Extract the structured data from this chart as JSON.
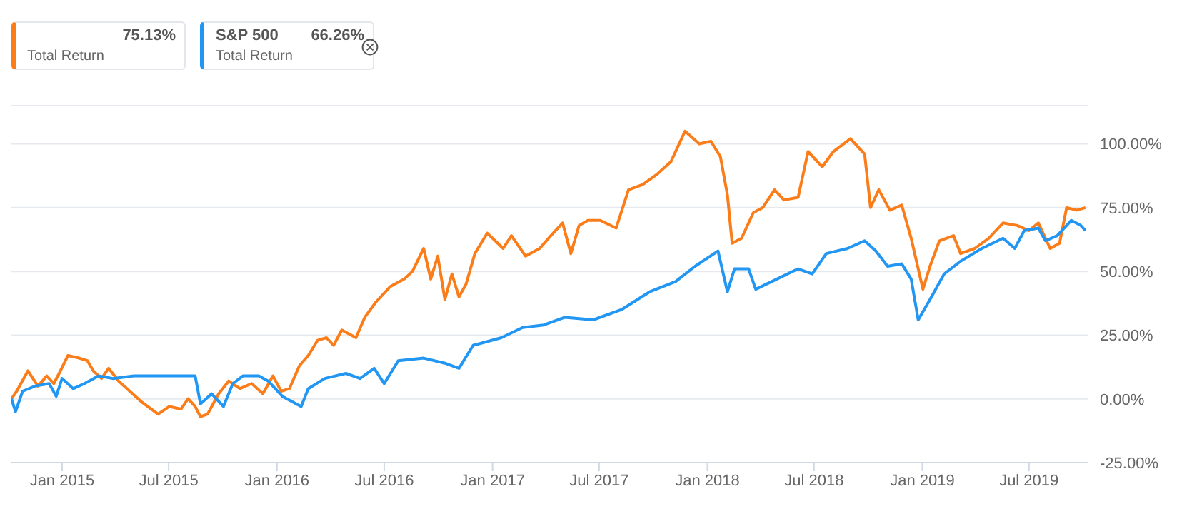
{
  "chart_data": {
    "type": "line",
    "legend": "top left",
    "grid": "y",
    "marker": "none",
    "line_style": "solid",
    "annotations": [
      "75.13%",
      "Total Return",
      "66.26%",
      "Total Return"
    ],
    "xlim": [
      "2014-10-07",
      "2019-10-10"
    ],
    "xticks": [
      {
        "value": "2015-01-01",
        "label": "Jan 2015"
      },
      {
        "value": "2015-07-01",
        "label": "Jul 2015"
      },
      {
        "value": "2016-01-01",
        "label": "Jan 2016"
      },
      {
        "value": "2016-07-01",
        "label": "Jul 2016"
      },
      {
        "value": "2017-01-01",
        "label": "Jan 2017"
      },
      {
        "value": "2017-07-01",
        "label": "Jul 2017"
      },
      {
        "value": "2018-01-01",
        "label": "Jan 2018"
      },
      {
        "value": "2018-07-01",
        "label": "Jul 2018"
      },
      {
        "value": "2019-01-01",
        "label": "Jan 2019"
      },
      {
        "value": "2019-07-01",
        "label": "Jul 2019"
      }
    ],
    "ylim": [
      -25,
      115
    ],
    "yticks": [
      {
        "value": -25,
        "label": "-25.00%"
      },
      {
        "value": 0,
        "label": "0.00%"
      },
      {
        "value": 25,
        "label": "25.00%"
      },
      {
        "value": 50,
        "label": "50.00%"
      },
      {
        "value": 75,
        "label": "75.00%"
      },
      {
        "value": 100,
        "label": "100.00%"
      }
    ],
    "series": [
      {
        "color": "#fb7d1a",
        "x": [
          "2014-10-07",
          "2014-10-16",
          "2014-11-04",
          "2014-11-21",
          "2014-12-06",
          "2014-12-18",
          "2014-12-27",
          "2015-01-11",
          "2015-01-30",
          "2015-02-13",
          "2015-02-23",
          "2015-03-09",
          "2015-03-21",
          "2015-04-07",
          "2015-04-26",
          "2015-05-15",
          "2015-06-13",
          "2015-07-02",
          "2015-07-22",
          "2015-08-03",
          "2015-08-15",
          "2015-08-24",
          "2015-09-05",
          "2015-09-24",
          "2015-10-11",
          "2015-10-30",
          "2015-11-19",
          "2015-12-08",
          "2015-12-25",
          "2016-01-08",
          "2016-01-22",
          "2016-02-08",
          "2016-02-23",
          "2016-03-10",
          "2016-03-25",
          "2016-04-06",
          "2016-04-20",
          "2016-05-14",
          "2016-05-29",
          "2016-06-17",
          "2016-07-11",
          "2016-08-04",
          "2016-08-18",
          "2016-09-06",
          "2016-09-18",
          "2016-09-30",
          "2016-10-12",
          "2016-10-24",
          "2016-11-05",
          "2016-11-17",
          "2016-12-02",
          "2016-12-23",
          "2017-01-19",
          "2017-02-02",
          "2017-02-26",
          "2017-03-22",
          "2017-04-10",
          "2017-04-30",
          "2017-05-14",
          "2017-05-28",
          "2017-06-12",
          "2017-07-03",
          "2017-07-30",
          "2017-08-20",
          "2017-09-13",
          "2017-10-07",
          "2017-10-31",
          "2017-11-24",
          "2017-12-18",
          "2018-01-07",
          "2018-01-23",
          "2018-02-04",
          "2018-02-12",
          "2018-02-28",
          "2018-03-20",
          "2018-04-05",
          "2018-04-25",
          "2018-05-11",
          "2018-06-04",
          "2018-06-21",
          "2018-07-15",
          "2018-08-03",
          "2018-09-01",
          "2018-09-25",
          "2018-10-05",
          "2018-10-19",
          "2018-11-07",
          "2018-11-27",
          "2018-12-13",
          "2019-01-02",
          "2019-01-14",
          "2019-01-30",
          "2019-02-23",
          "2019-03-07",
          "2019-03-31",
          "2019-04-24",
          "2019-05-18",
          "2019-06-11",
          "2019-07-01",
          "2019-07-17",
          "2019-08-06",
          "2019-08-22",
          "2019-09-03",
          "2019-09-20",
          "2019-10-05"
        ],
        "values": [
          0,
          3,
          11,
          5,
          9,
          6,
          10,
          17,
          16,
          15,
          11,
          8,
          12,
          7,
          3,
          -1,
          -6,
          -3,
          -4,
          0,
          -3,
          -7,
          -6,
          2,
          7,
          4,
          6,
          2,
          9,
          3,
          4,
          13,
          17,
          23,
          24,
          21,
          27,
          24,
          32,
          38,
          44,
          47,
          50,
          59,
          47,
          56,
          39,
          49,
          40,
          45,
          57,
          65,
          59,
          64,
          56,
          59,
          64,
          69,
          57,
          68,
          70,
          70,
          67,
          82,
          84,
          88,
          93,
          105,
          100,
          101,
          95,
          80,
          61,
          63,
          73,
          75,
          82,
          78,
          79,
          97,
          91,
          97,
          102,
          96,
          75,
          82,
          74,
          76,
          63,
          43,
          52,
          62,
          64,
          57,
          59,
          63,
          69,
          68,
          66,
          69,
          59,
          61,
          75,
          74,
          75
        ]
      },
      {
        "name": "S&P 500",
        "color": "#2196f3",
        "x": [
          "2014-10-07",
          "2014-10-14",
          "2014-10-26",
          "2014-11-16",
          "2014-12-10",
          "2014-12-22",
          "2015-01-01",
          "2015-01-20",
          "2015-02-08",
          "2015-03-04",
          "2015-03-28",
          "2015-05-03",
          "2015-06-08",
          "2015-07-14",
          "2015-08-15",
          "2015-08-24",
          "2015-09-12",
          "2015-10-02",
          "2015-10-18",
          "2015-11-04",
          "2015-12-01",
          "2015-12-17",
          "2016-01-10",
          "2016-02-11",
          "2016-02-23",
          "2016-03-22",
          "2016-04-27",
          "2016-05-21",
          "2016-06-14",
          "2016-07-01",
          "2016-07-25",
          "2016-09-06",
          "2016-10-12",
          "2016-11-05",
          "2016-11-29",
          "2017-01-16",
          "2017-02-21",
          "2017-03-29",
          "2017-05-04",
          "2017-06-21",
          "2017-08-08",
          "2017-09-25",
          "2017-11-08",
          "2017-12-11",
          "2018-01-19",
          "2018-02-04",
          "2018-02-16",
          "2018-03-12",
          "2018-03-24",
          "2018-04-29",
          "2018-06-04",
          "2018-06-28",
          "2018-07-22",
          "2018-08-27",
          "2018-09-25",
          "2018-10-14",
          "2018-11-03",
          "2018-11-27",
          "2018-12-13",
          "2018-12-25",
          "2019-01-14",
          "2019-02-07",
          "2019-03-07",
          "2019-04-12",
          "2019-05-18",
          "2019-06-07",
          "2019-06-23",
          "2019-07-17",
          "2019-07-29",
          "2019-08-18",
          "2019-09-11",
          "2019-09-27",
          "2019-10-05"
        ],
        "values": [
          0,
          -5,
          3,
          5,
          6,
          1,
          8,
          4,
          6,
          9,
          8,
          9,
          9,
          9,
          9,
          -2,
          2,
          -3,
          6,
          9,
          9,
          7,
          1,
          -3,
          4,
          8,
          10,
          8,
          12,
          6,
          15,
          16,
          14,
          12,
          21,
          24,
          28,
          29,
          32,
          31,
          35,
          42,
          46,
          52,
          58,
          42,
          51,
          51,
          43,
          47,
          51,
          49,
          57,
          59,
          62,
          58,
          52,
          53,
          47,
          31,
          39,
          49,
          54,
          59,
          63,
          59,
          66,
          67,
          62,
          64,
          70,
          68,
          66
        ]
      }
    ]
  }
}
